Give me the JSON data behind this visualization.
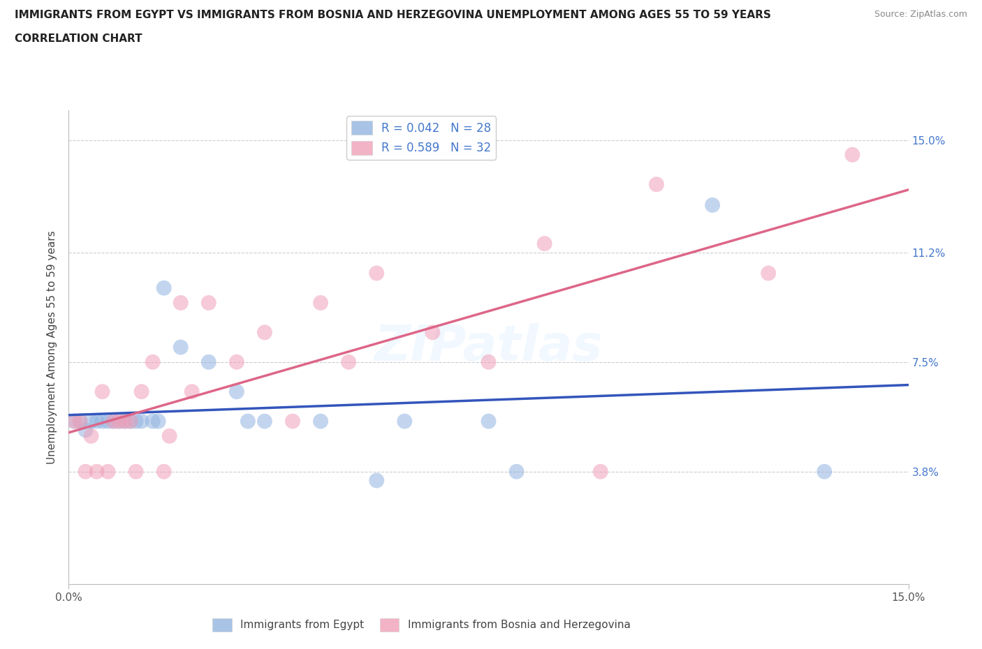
{
  "title_line1": "IMMIGRANTS FROM EGYPT VS IMMIGRANTS FROM BOSNIA AND HERZEGOVINA UNEMPLOYMENT AMONG AGES 55 TO 59 YEARS",
  "title_line2": "CORRELATION CHART",
  "source": "Source: ZipAtlas.com",
  "ylabel": "Unemployment Among Ages 55 to 59 years",
  "xlim": [
    0,
    15
  ],
  "ylim": [
    0,
    16
  ],
  "ytick_values": [
    3.8,
    7.5,
    11.2,
    15.0
  ],
  "ytick_labels": [
    "3.8%",
    "7.5%",
    "11.2%",
    "15.0%"
  ],
  "xtick_values": [
    0,
    15
  ],
  "xtick_labels": [
    "0.0%",
    "15.0%"
  ],
  "watermark": "ZIPatlas",
  "legend_r1": "R = 0.042",
  "legend_n1": "N = 28",
  "legend_r2": "R = 0.589",
  "legend_n2": "N = 32",
  "blue_scatter_color": "#92B4E0",
  "pink_scatter_color": "#F0A0B8",
  "blue_line_color": "#3355BB",
  "pink_line_color": "#DD6688",
  "title_color": "#222222",
  "right_axis_color": "#4477CC",
  "egypt_x": [
    0.1,
    0.2,
    0.3,
    0.4,
    0.5,
    0.6,
    0.7,
    0.8,
    0.9,
    1.0,
    1.1,
    1.2,
    1.3,
    1.5,
    1.6,
    1.7,
    2.0,
    2.5,
    3.0,
    3.2,
    3.5,
    4.5,
    5.5,
    6.0,
    7.5,
    8.0,
    11.5,
    13.5
  ],
  "egypt_y": [
    5.5,
    5.5,
    5.2,
    5.5,
    5.5,
    5.5,
    5.5,
    5.5,
    5.5,
    5.5,
    5.5,
    5.5,
    5.5,
    5.5,
    5.5,
    10.0,
    8.0,
    7.5,
    6.5,
    5.5,
    5.5,
    5.5,
    3.5,
    5.5,
    5.5,
    3.8,
    12.8,
    3.8
  ],
  "bosnia_x": [
    0.1,
    0.2,
    0.3,
    0.4,
    0.5,
    0.6,
    0.7,
    0.8,
    0.9,
    1.0,
    1.1,
    1.2,
    1.3,
    1.5,
    1.7,
    1.8,
    2.0,
    2.2,
    2.5,
    3.0,
    3.5,
    4.0,
    4.5,
    5.0,
    5.5,
    6.5,
    7.5,
    8.5,
    9.5,
    10.5,
    12.5,
    14.0
  ],
  "bosnia_y": [
    5.5,
    5.5,
    3.8,
    5.0,
    3.8,
    6.5,
    3.8,
    5.5,
    5.5,
    5.5,
    5.5,
    3.8,
    6.5,
    7.5,
    3.8,
    5.0,
    9.5,
    6.5,
    9.5,
    7.5,
    8.5,
    5.5,
    9.5,
    7.5,
    10.5,
    8.5,
    7.5,
    11.5,
    3.8,
    13.5,
    10.5,
    14.5
  ]
}
